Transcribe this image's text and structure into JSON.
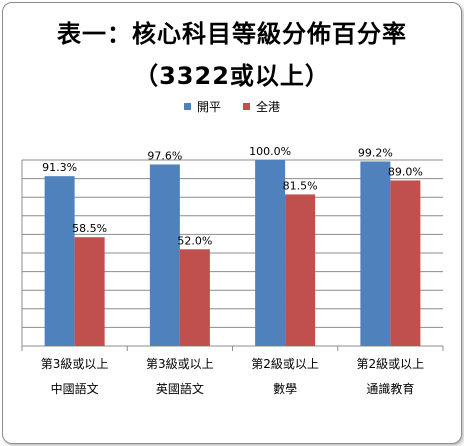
{
  "chart_data": {
    "type": "bar",
    "title": "表一：核心科目等級分佈百分率",
    "subtitle": "（3322或以上）",
    "categories": [
      {
        "line1": "第3級或以上",
        "line2": "中國語文"
      },
      {
        "line1": "第3級或以上",
        "line2": "英國語文"
      },
      {
        "line1": "第2級或以上",
        "line2": "數學"
      },
      {
        "line1": "第2級或以上",
        "line2": "通識教育"
      }
    ],
    "series": [
      {
        "name": "開平",
        "color": "#4f81bd",
        "values": [
          91.3,
          97.6,
          100.0,
          99.2
        ],
        "labels": [
          "91.3%",
          "97.6%",
          "100.0%",
          "99.2%"
        ]
      },
      {
        "name": "全港",
        "color": "#c0504d",
        "values": [
          58.5,
          52.0,
          81.5,
          89.0
        ],
        "labels": [
          "58.5%",
          "52.0%",
          "81.5%",
          "89.0%"
        ]
      }
    ],
    "ylim": [
      0,
      100
    ],
    "grid": true,
    "legend_position": "top"
  }
}
